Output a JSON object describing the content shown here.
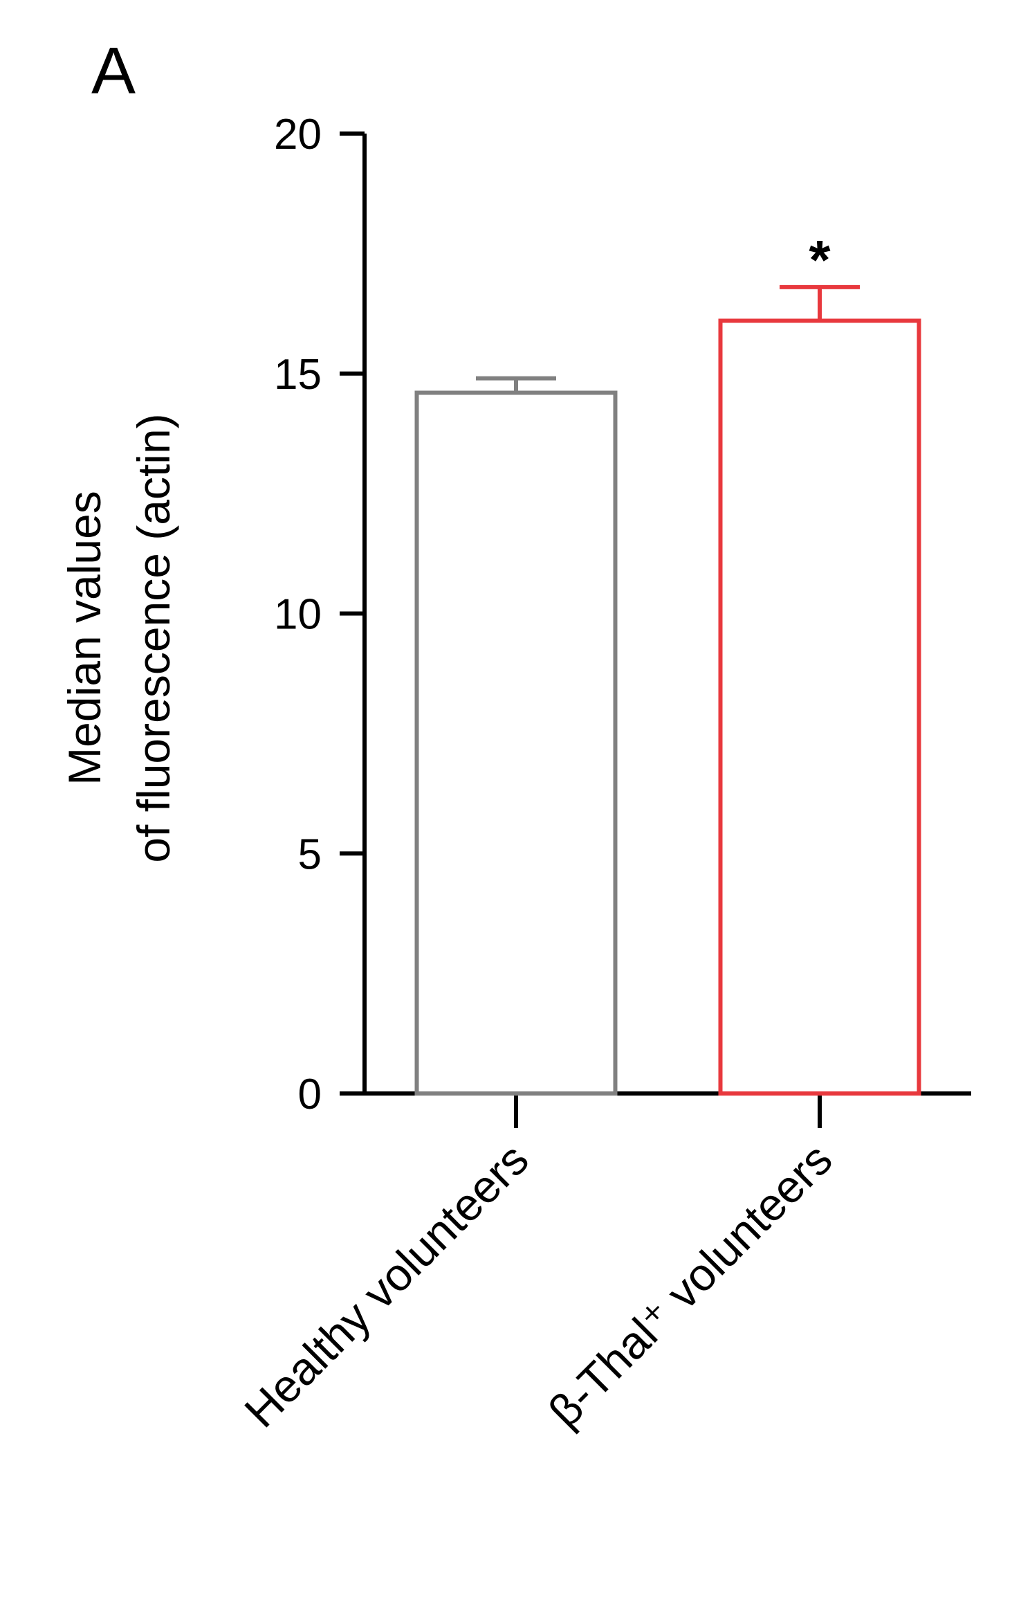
{
  "chart_data": {
    "type": "bar",
    "panel_label": "A",
    "ylabel": [
      "Median values",
      "of fluorescence (actin)"
    ],
    "categories": [
      "Healthy volunteers",
      "β-Thal⁺ volunteers"
    ],
    "values": [
      14.6,
      16.1
    ],
    "errors": [
      0.3,
      0.7
    ],
    "colors": [
      "#808080",
      "#e8383d"
    ],
    "ylim": [
      0,
      20
    ],
    "yticks": [
      0,
      5,
      10,
      15,
      20
    ],
    "annotations": [
      {
        "text": "*",
        "category": "β-Thal⁺ volunteers"
      }
    ]
  }
}
